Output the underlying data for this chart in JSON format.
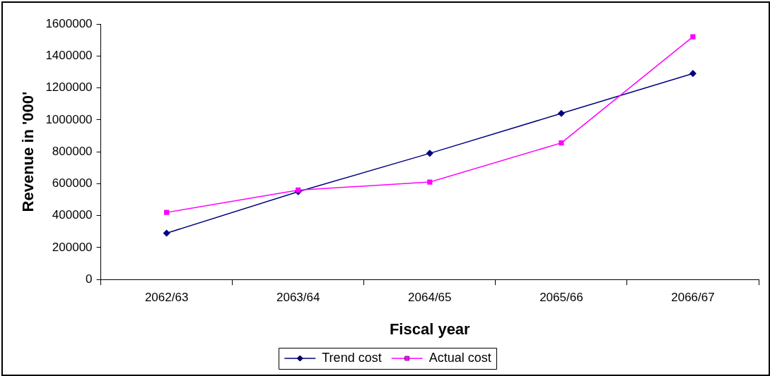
{
  "chart_data": {
    "type": "line",
    "xlabel": "Fiscal year",
    "ylabel": "Revenue in '000'",
    "categories": [
      "2062/63",
      "2063/64",
      "2064/65",
      "2065/66",
      "2066/67"
    ],
    "series": [
      {
        "name": "Trend cost",
        "color": "#000080",
        "marker": "diamond",
        "values": [
          290000,
          550000,
          790000,
          1040000,
          1290000
        ]
      },
      {
        "name": "Actual cost",
        "color": "#ff00ff",
        "marker": "square",
        "values": [
          420000,
          560000,
          610000,
          855000,
          1520000
        ]
      }
    ],
    "ylim": [
      0,
      1600000
    ],
    "yticks": [
      0,
      200000,
      400000,
      600000,
      800000,
      1000000,
      1200000,
      1400000,
      1600000
    ],
    "grid": false,
    "legend": "bottom",
    "line_style": "solid"
  }
}
